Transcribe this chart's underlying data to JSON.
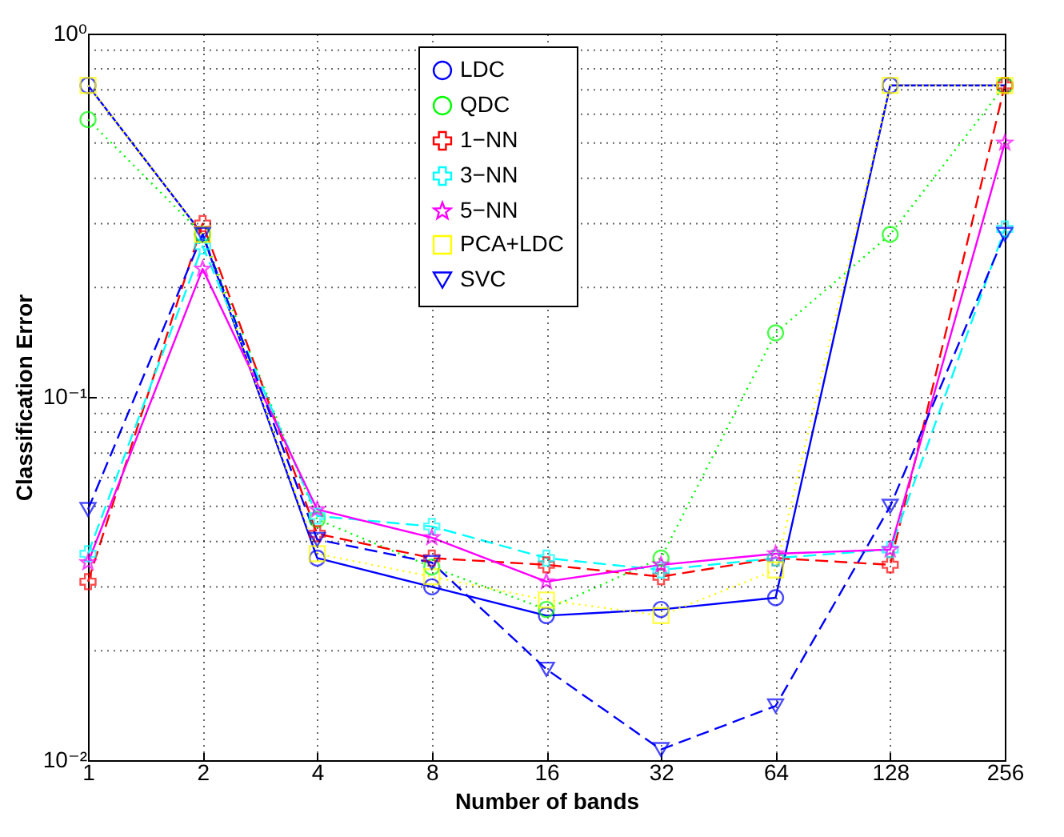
{
  "chart_data": {
    "type": "line",
    "xlabel": "Number of bands",
    "ylabel": "Classification Error",
    "categories": [
      "1",
      "2",
      "4",
      "8",
      "16",
      "32",
      "64",
      "128",
      "256"
    ],
    "log": "y",
    "ylim": [
      0.01,
      1
    ],
    "yticks": [
      {
        "value": 0.01,
        "label": "10⁻²"
      },
      {
        "value": 0.1,
        "label": "10⁻¹"
      },
      {
        "value": 1,
        "label": "10⁰"
      }
    ],
    "grid": true,
    "legend": "top",
    "series": [
      {
        "name": "LDC",
        "color": "#0000ff",
        "marker": "circle",
        "line_style": "solid",
        "values": [
          0.72,
          0.28,
          0.036,
          0.03,
          0.025,
          0.026,
          0.028,
          0.72,
          0.72
        ]
      },
      {
        "name": "QDC",
        "color": "#00ff00",
        "marker": "circle",
        "line_style": "dotted",
        "values": [
          0.58,
          0.28,
          0.046,
          0.034,
          0.026,
          0.036,
          0.15,
          0.28,
          0.72
        ]
      },
      {
        "name": "1−NN",
        "color": "#ff0000",
        "marker": "cross",
        "line_style": "dashed",
        "values": [
          0.031,
          0.3,
          0.042,
          0.036,
          0.0345,
          0.032,
          0.036,
          0.0345,
          0.72
        ]
      },
      {
        "name": "3−NN",
        "color": "#00ffff",
        "marker": "cross",
        "line_style": "dashed",
        "values": [
          0.037,
          0.26,
          0.047,
          0.044,
          0.036,
          0.0334,
          0.036,
          0.038,
          0.29
        ]
      },
      {
        "name": "5−NN",
        "color": "#ff00ff",
        "marker": "star",
        "line_style": "solid",
        "values": [
          0.035,
          0.225,
          0.049,
          0.041,
          0.031,
          0.0345,
          0.037,
          0.038,
          0.5
        ]
      },
      {
        "name": "PCA+LDC",
        "color": "#ffff00",
        "marker": "square",
        "line_style": "dotted",
        "values": [
          0.72,
          0.28,
          0.037,
          0.032,
          0.0276,
          0.025,
          0.0334,
          0.72,
          0.72
        ]
      },
      {
        "name": "SVC",
        "color": "#0000ff",
        "marker": "triangle",
        "line_style": "dashed",
        "values": [
          0.049,
          0.28,
          0.0405,
          0.035,
          0.0178,
          0.0107,
          0.0141,
          0.05,
          0.28
        ]
      }
    ]
  }
}
